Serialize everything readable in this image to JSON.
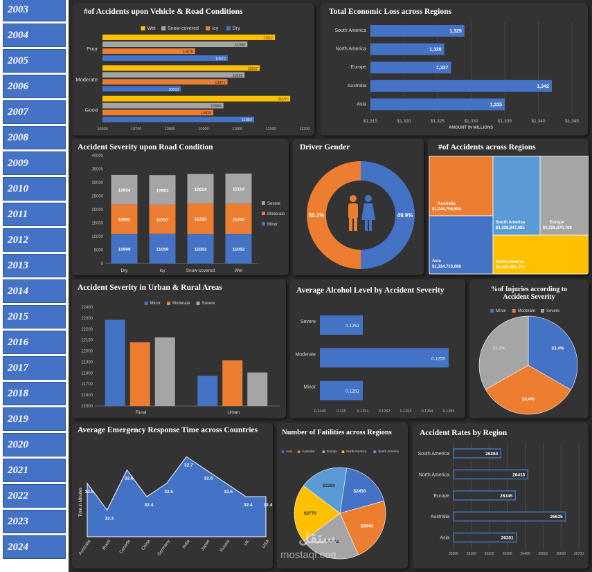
{
  "sidebar": {
    "years": [
      "2003",
      "2004",
      "2005",
      "2006",
      "2007",
      "2008",
      "2009",
      "2010",
      "2011",
      "2012",
      "2013",
      "2014",
      "2015",
      "2016",
      "2017",
      "2018",
      "2019",
      "2020",
      "2021",
      "2022",
      "2023",
      "2024"
    ]
  },
  "colors": {
    "blue": "#4472c4",
    "orange": "#ed7d31",
    "gray": "#a5a5a5",
    "yellow": "#ffc000",
    "lightblue": "#5b9bd5",
    "panel": "#333333"
  },
  "panels": {
    "vehicle_road": "#of Accidents upon Vehicle & Road Conditions",
    "economic_loss": "Total Economic Loss across Regions",
    "severity_road": "Accident Severity upon Road Condition",
    "driver_gender": "Driver Gender",
    "accidents_regions": "#of Accidents across Regions",
    "urban_rural": "Accident Severity in Urban & Rural Areas",
    "alcohol": "Average Alcohol Level by Accident Severity",
    "injuries_line1": "%of Injuries according to",
    "injuries_line2": "Accident Severity",
    "emergency": "Average Emergency Response Time across Countries",
    "fatalities": "Number of Fatilities across Regions",
    "rates": "Accident Rates by Region"
  },
  "watermark": {
    "text": "mostaql.com"
  },
  "chart_data": [
    {
      "id": "vehicle_road",
      "type": "bar",
      "orientation": "horizontal",
      "categories": [
        "Poor",
        "Moderate",
        "Good"
      ],
      "series": [
        {
          "name": "Wet",
          "values": [
            11112,
            11067,
            11157
          ]
        },
        {
          "name": "Snow-covered",
          "values": [
            11030,
            11022,
            10959
          ]
        },
        {
          "name": "Icy",
          "values": [
            10875,
            10971,
            10929
          ]
        },
        {
          "name": "Dry",
          "values": [
            10972,
            10833,
            11050
          ]
        }
      ],
      "xlim": [
        10600,
        11200
      ],
      "xticks": [
        10600,
        10700,
        10800,
        10900,
        11000,
        11100,
        11200
      ],
      "legend": "top"
    },
    {
      "id": "economic_loss",
      "type": "bar",
      "orientation": "horizontal",
      "categories": [
        "South America",
        "North America",
        "Europe",
        "Australia",
        "Asia"
      ],
      "values": [
        1329,
        1326,
        1327,
        1342,
        1335
      ],
      "labels": [
        "1,329",
        "1,326",
        "1,327",
        "1,342",
        "1,335"
      ],
      "xlim": [
        1315,
        1345
      ],
      "xticks": [
        "$1,315",
        "$1,320",
        "$1,325",
        "$1,330",
        "$1,335",
        "$1,340",
        "$1,345"
      ],
      "xlabel": "AMOUNT IN MILLIONS"
    },
    {
      "id": "severity_road",
      "type": "bar",
      "stacked": true,
      "categories": [
        "Dry",
        "Icy",
        "Snow-covered",
        "Wet"
      ],
      "series": [
        {
          "name": "Minor",
          "values": [
            10999,
            11059,
            11003,
            11002
          ]
        },
        {
          "name": "Moderate",
          "values": [
            10952,
            10757,
            11293,
            11200
          ]
        },
        {
          "name": "Severe",
          "values": [
            10904,
            10963,
            10914,
            11154
          ]
        }
      ],
      "ylim": [
        0,
        40000
      ],
      "yticks": [
        0,
        5000,
        10000,
        15000,
        20000,
        25000,
        30000,
        35000,
        40000
      ],
      "legend": "right"
    },
    {
      "id": "driver_gender",
      "type": "pie",
      "donut": true,
      "slices": [
        {
          "label": "50.1%",
          "value": 50.1
        },
        {
          "label": "49.9%",
          "value": 49.9
        }
      ],
      "icon": "male-female-icon"
    },
    {
      "id": "accidents_regions",
      "type": "treemap",
      "items": [
        {
          "name": "Australia",
          "label": "$1,344,755,508",
          "value": 1344755508
        },
        {
          "name": "Asia",
          "label": "$1,334,716,068",
          "value": 1334716068
        },
        {
          "name": "South America",
          "label": "$1,328,847,085",
          "value": 1328847085
        },
        {
          "name": "Europe",
          "label": "$1,326,870,708",
          "value": 1326870708
        },
        {
          "name": "North America",
          "label": "$1,325,561,372",
          "value": 1325561372
        }
      ]
    },
    {
      "id": "urban_rural",
      "type": "bar",
      "categories": [
        "Rural",
        "Urban"
      ],
      "series": [
        {
          "name": "Minor",
          "values": [
            22285,
            21775
          ]
        },
        {
          "name": "Moderate",
          "values": [
            22080,
            21915
          ]
        },
        {
          "name": "Severe",
          "values": [
            22125,
            21805
          ]
        }
      ],
      "ylim": [
        21500,
        22400
      ],
      "yticks": [
        21500,
        21600,
        21700,
        21800,
        21900,
        22000,
        22100,
        22200,
        22300,
        22400
      ],
      "legend": "top"
    },
    {
      "id": "alcohol",
      "type": "bar",
      "orientation": "horizontal",
      "categories": [
        "Severe",
        "Moderate",
        "Minor"
      ],
      "values": [
        0.1251,
        0.1255,
        0.1251
      ],
      "labels": [
        "0.1251",
        "0.1255",
        "0.1251"
      ],
      "xlim": [
        0.1249,
        0.1256
      ],
      "xticks": [
        "0.1249",
        "0.125",
        "0.1251",
        "0.1252",
        "0.1253",
        "0.1254",
        "0.1255"
      ]
    },
    {
      "id": "injuries",
      "type": "pie",
      "series": [
        {
          "name": "Minor",
          "value": 33.4,
          "label": "33.4%"
        },
        {
          "name": "Moderate",
          "value": 33.4,
          "label": "33.4%"
        },
        {
          "name": "Severe",
          "value": 33.3,
          "label": "33.3%"
        }
      ],
      "legend": "top"
    },
    {
      "id": "emergency",
      "type": "area",
      "categories": [
        "Australia",
        "Brazil",
        "Canada",
        "China",
        "Germany",
        "India",
        "Japan",
        "Russia",
        "UK",
        "USA"
      ],
      "values": [
        32.5,
        32.3,
        32.6,
        32.4,
        32.5,
        32.7,
        32.6,
        32.5,
        32.4,
        32.4
      ],
      "labels": [
        "32.5",
        "32.3",
        "32.6",
        "32.4",
        "32.5",
        "32.7",
        "32.6",
        "32.5",
        "32.4",
        "32.4"
      ],
      "ylabel": "Time in Minutes"
    },
    {
      "id": "fatalities",
      "type": "pie",
      "series": [
        {
          "name": "Asia",
          "value": 2450,
          "label": "$2450"
        },
        {
          "name": "Australia",
          "value": 3045,
          "label": "$3045"
        },
        {
          "name": "Europe",
          "value": 2844,
          "label": "$2844"
        },
        {
          "name": "North America",
          "value": 2770,
          "label": "$2770"
        },
        {
          "name": "South America",
          "value": 2289,
          "label": "$2289"
        }
      ],
      "legend": "top"
    },
    {
      "id": "rates",
      "type": "bar",
      "orientation": "horizontal",
      "categories": [
        "South America",
        "North America",
        "Europe",
        "Australia",
        "Asia"
      ],
      "values": [
        26264,
        26415,
        26345,
        26625,
        26351
      ],
      "labels": [
        "26264",
        "26415",
        "26345",
        "26625",
        "26351"
      ],
      "xlim": [
        26000,
        26700
      ],
      "xticks": [
        26000,
        26100,
        26200,
        26300,
        26400,
        26500,
        26600,
        26700
      ]
    }
  ]
}
